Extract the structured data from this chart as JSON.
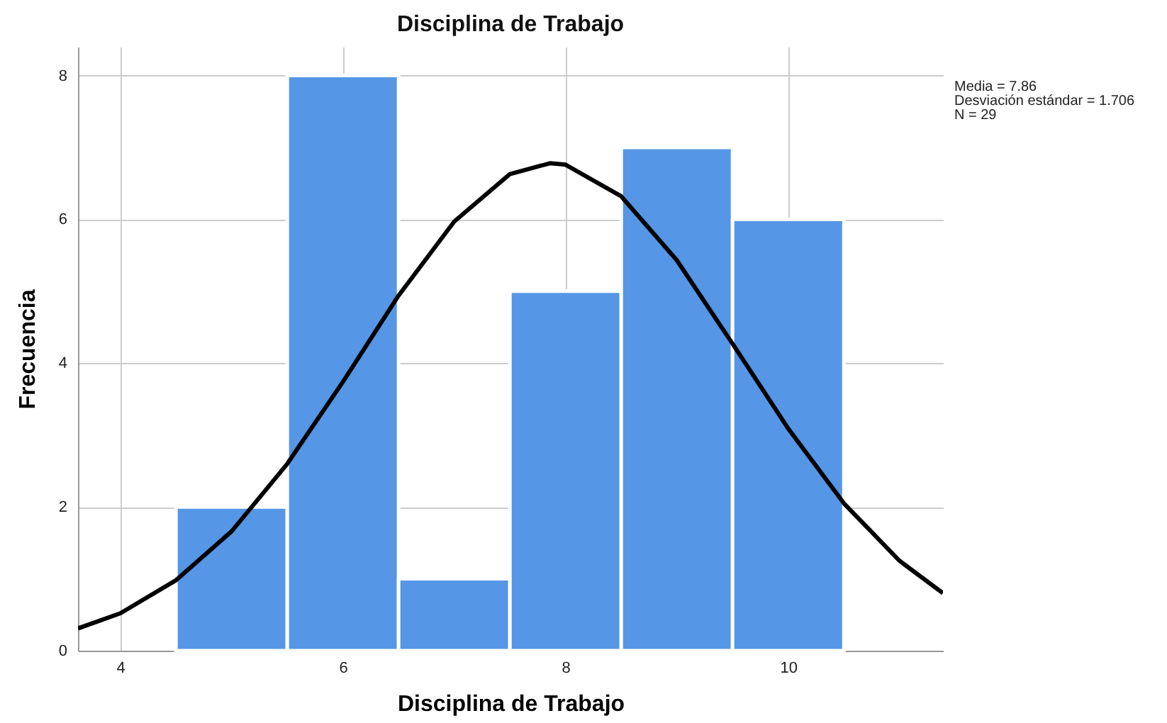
{
  "chart_data": {
    "type": "histogram",
    "title": "Disciplina de Trabajo",
    "xlabel": "Disciplina de Trabajo",
    "ylabel": "Frecuencia",
    "series": [
      {
        "color": "#5596e6",
        "bins": [
          4.5,
          5.5,
          6.5,
          7.5,
          8.5,
          9.5,
          10.5
        ],
        "values": [
          2,
          8,
          1,
          5,
          7,
          6
        ]
      },
      {
        "type": "line",
        "color": "#000000",
        "x": [
          3.62,
          4.0,
          4.5,
          5.0,
          5.5,
          6.0,
          6.5,
          7.0,
          7.5,
          7.86,
          8.0,
          8.5,
          9.0,
          9.5,
          10.0,
          10.5,
          11.0,
          11.39
        ],
        "values": [
          0.31,
          0.52,
          0.98,
          1.66,
          2.6,
          3.74,
          4.94,
          5.97,
          6.63,
          6.78,
          6.76,
          6.32,
          5.43,
          4.27,
          3.09,
          2.05,
          1.25,
          0.8
        ]
      }
    ],
    "xlim": [
      3.62,
      11.39
    ],
    "xticks": [
      4,
      6,
      8,
      10
    ],
    "ylim": [
      0,
      8.4
    ],
    "yticks": [
      0,
      2,
      4,
      6,
      8
    ],
    "grid": true,
    "annotations": [
      "Media = 7.86",
      "Desviación estándar = 1.706",
      "N = 29"
    ]
  }
}
